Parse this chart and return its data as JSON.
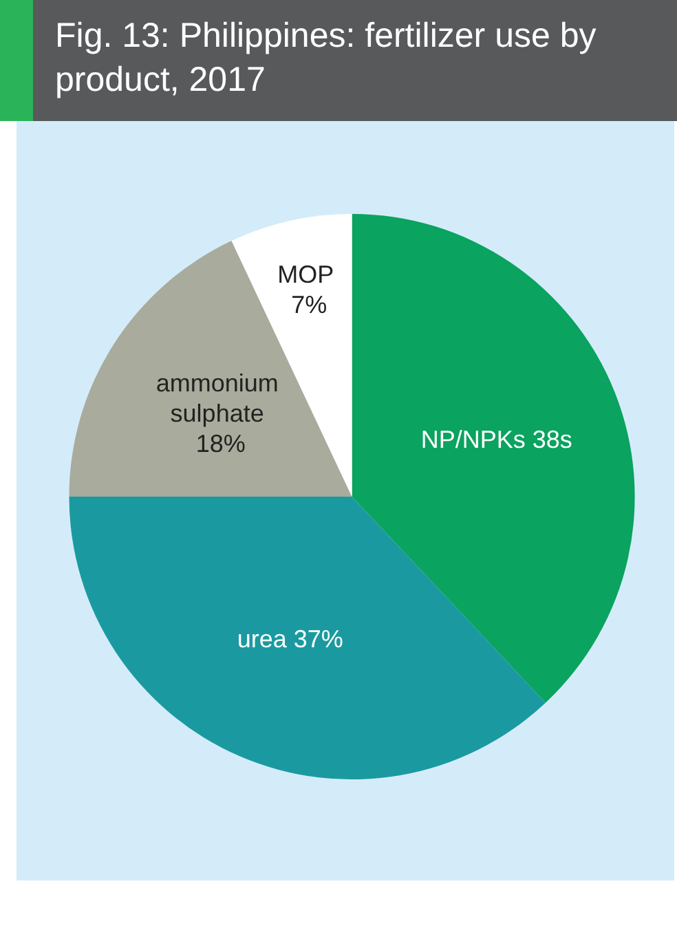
{
  "chart_data": {
    "type": "pie",
    "title": "Fig. 13: Philippines: fertilizer use by product, 2017",
    "categories": [
      "NP/NPKs",
      "urea",
      "ammonium sulphate",
      "MOP"
    ],
    "values": [
      38,
      37,
      18,
      7
    ],
    "value_labels": [
      "38s",
      "37%",
      "18%",
      "7%"
    ],
    "colors": [
      "#0aa35f",
      "#1a9aa0",
      "#a9ab9c",
      "#ffffff"
    ],
    "legend": false
  }
}
